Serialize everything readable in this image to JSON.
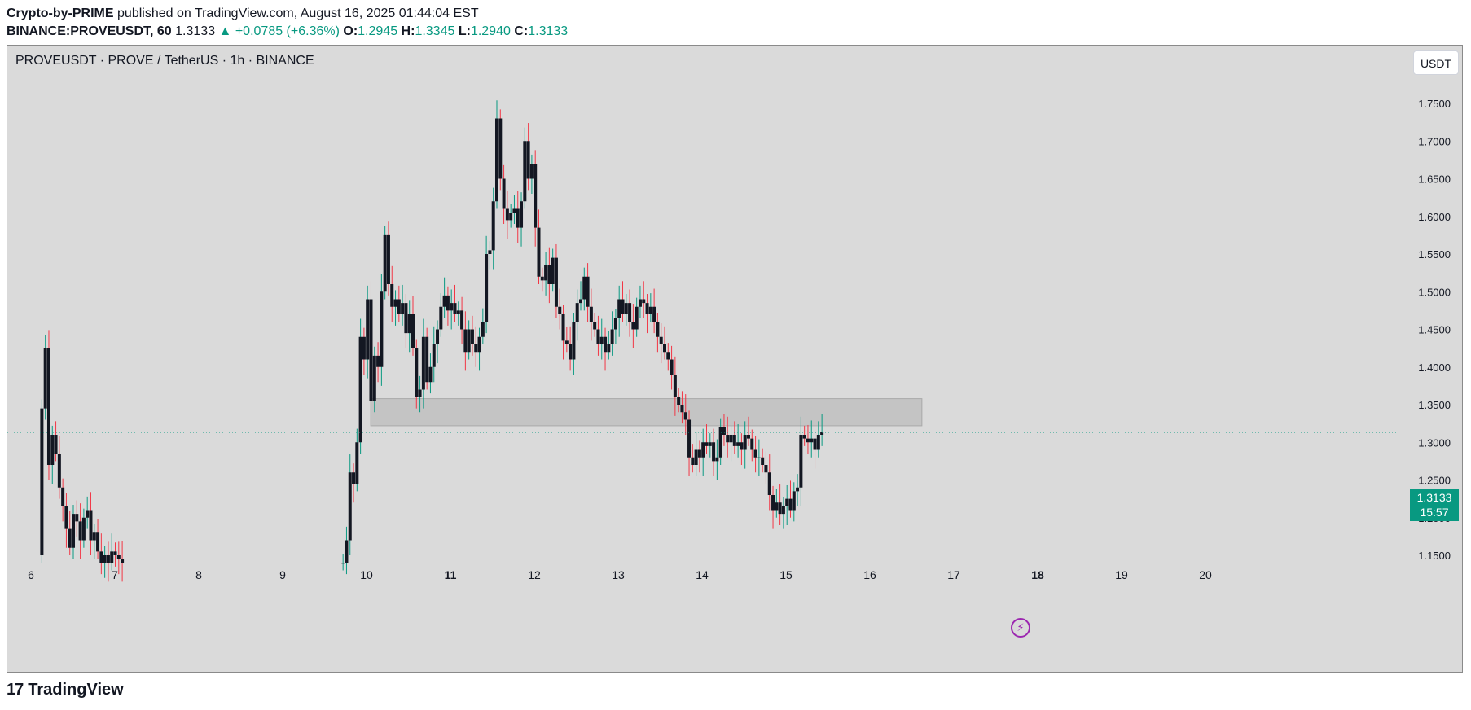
{
  "header": {
    "author": "Crypto-by-PRIME",
    "published": "published on TradingView.com, August 16, 2025 01:44:04 EST",
    "symbol": "BINANCE:PROVEUSDT, 60",
    "last": "1.3133",
    "change": "▲ +0.0785 (+6.36%)",
    "o_label": "O:",
    "o": "1.2945",
    "h_label": "H:",
    "h": "1.3345",
    "l_label": "L:",
    "l": "1.2940",
    "c_label": "C:",
    "c": "1.3133"
  },
  "chart_title": "PROVEUSDT · PROVE / TetherUS · 1h · BINANCE",
  "currency": "USDT",
  "price_tag": {
    "price": "1.3133",
    "countdown": "15:57"
  },
  "footer": {
    "logo_mark": "17",
    "brand": "TradingView"
  },
  "colors": {
    "up": "#089981",
    "down": "#f23645",
    "background": "#dadada",
    "zone": "#c4c4c4"
  },
  "icons": {
    "alert": "flash-icon"
  },
  "chart_data": {
    "type": "candlestick",
    "title": "PROVEUSDT · PROVE / TetherUS · 1h · BINANCE",
    "ylim": [
      1.14,
      1.775
    ],
    "yticks": [
      1.15,
      1.2,
      1.25,
      1.3,
      1.35,
      1.4,
      1.45,
      1.5,
      1.55,
      1.6,
      1.65,
      1.7,
      1.75
    ],
    "ytick_labels": [
      "1.1500",
      "1.2000",
      "1.2500",
      "1.3000",
      "1.3500",
      "1.4000",
      "1.4500",
      "1.5000",
      "1.5500",
      "1.6000",
      "1.6500",
      "1.7000",
      "1.7500"
    ],
    "xlim": [
      6.0,
      20.3
    ],
    "xticks": [
      {
        "day": 6,
        "label": "6",
        "bold": false
      },
      {
        "day": 7,
        "label": "7",
        "bold": false
      },
      {
        "day": 8,
        "label": "8",
        "bold": false
      },
      {
        "day": 9,
        "label": "9",
        "bold": false
      },
      {
        "day": 10,
        "label": "10",
        "bold": false
      },
      {
        "day": 11,
        "label": "11",
        "bold": true
      },
      {
        "day": 12,
        "label": "12",
        "bold": false
      },
      {
        "day": 13,
        "label": "13",
        "bold": false
      },
      {
        "day": 14,
        "label": "14",
        "bold": false
      },
      {
        "day": 15,
        "label": "15",
        "bold": false
      },
      {
        "day": 16,
        "label": "16",
        "bold": false
      },
      {
        "day": 17,
        "label": "17",
        "bold": false
      },
      {
        "day": 18,
        "label": "18",
        "bold": true
      },
      {
        "day": 19,
        "label": "19",
        "bold": false
      },
      {
        "day": 20,
        "label": "20",
        "bold": false
      }
    ],
    "zone": {
      "x0": 10.05,
      "x1": 16.62,
      "y0": 1.322,
      "y1": 1.358
    },
    "closes": {
      "seg1": [
        1.345,
        1.425,
        1.27,
        1.31,
        1.285,
        1.24,
        1.215,
        1.185,
        1.16,
        1.205,
        1.195,
        1.17,
        1.2,
        1.21,
        1.17,
        1.18,
        1.155,
        1.14,
        1.15,
        1.14,
        1.155,
        1.15,
        1.145,
        1.14
      ],
      "seg2": [
        1.14,
        1.17,
        1.26,
        1.245,
        1.3,
        1.44,
        1.41,
        1.49,
        1.355,
        1.415,
        1.4,
        1.5,
        1.575,
        1.51,
        1.48,
        1.49,
        1.47,
        1.485,
        1.445,
        1.47,
        1.425,
        1.36,
        1.37,
        1.44,
        1.38,
        1.4,
        1.43,
        1.45,
        1.48,
        1.495,
        1.475,
        1.485,
        1.47,
        1.475,
        1.45,
        1.42,
        1.45,
        1.43,
        1.42,
        1.44,
        1.46,
        1.55,
        1.555,
        1.62,
        1.73,
        1.65,
        1.61,
        1.595,
        1.605,
        1.61,
        1.585,
        1.62,
        1.7,
        1.65,
        1.67,
        1.585,
        1.52,
        1.515,
        1.535,
        1.51,
        1.545,
        1.48,
        1.47,
        1.435,
        1.43,
        1.41,
        1.46,
        1.485,
        1.49,
        1.52,
        1.48,
        1.46,
        1.45,
        1.43,
        1.44,
        1.42,
        1.43,
        1.45,
        1.465,
        1.49,
        1.47,
        1.485,
        1.46,
        1.45,
        1.48,
        1.49,
        1.485,
        1.47,
        1.48,
        1.46,
        1.44,
        1.43,
        1.42,
        1.41,
        1.39,
        1.36,
        1.35,
        1.34,
        1.33,
        1.28,
        1.27,
        1.29,
        1.28,
        1.3,
        1.295,
        1.3,
        1.275,
        1.28,
        1.32,
        1.31,
        1.3,
        1.31,
        1.295,
        1.3,
        1.29,
        1.31,
        1.305,
        1.29,
        1.28,
        1.28,
        1.27,
        1.26,
        1.23,
        1.21,
        1.22,
        1.205,
        1.215,
        1.225,
        1.21,
        1.235,
        1.24,
        1.31,
        1.305,
        1.3,
        1.305,
        1.29,
        1.31,
        1.3133
      ]
    }
  }
}
